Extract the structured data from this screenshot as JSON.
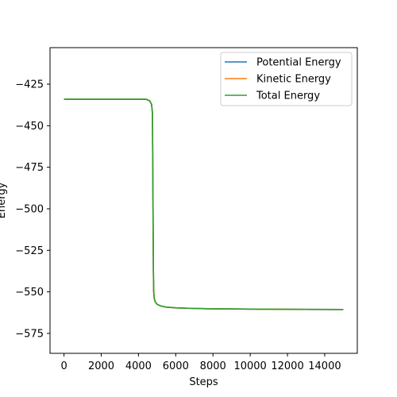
{
  "chart_data": {
    "type": "line",
    "title": "",
    "xlabel": "Steps",
    "ylabel": "Energy",
    "xlim": [
      -750,
      15750
    ],
    "ylim": [
      -587,
      -403
    ],
    "x_ticks": [
      0,
      2000,
      4000,
      6000,
      8000,
      10000,
      12000,
      14000
    ],
    "y_ticks": [
      -425,
      -450,
      -475,
      -500,
      -525,
      -550,
      -575
    ],
    "x_tick_labels": [
      "0",
      "2000",
      "4000",
      "6000",
      "8000",
      "10000",
      "12000",
      "14000"
    ],
    "y_tick_labels": [
      "−425",
      "−450",
      "−475",
      "−500",
      "−525",
      "−550",
      "−575"
    ],
    "grid": false,
    "legend_position": "top-right",
    "series": [
      {
        "name": "Potential Energy",
        "color": "#1f77b4",
        "x": [
          0,
          1000,
          2000,
          3000,
          4000,
          4400,
          4600,
          4700,
          4750,
          4800,
          4820,
          4850,
          4900,
          5000,
          5200,
          5500,
          6000,
          7000,
          8000,
          10000,
          12000,
          15000
        ],
        "y": [
          -434,
          -434,
          -434,
          -434,
          -434,
          -434,
          -435,
          -437,
          -442,
          -538,
          -550,
          -554,
          -556,
          -557.5,
          -558.5,
          -559.2,
          -559.6,
          -560.0,
          -560.2,
          -560.4,
          -560.5,
          -560.6
        ]
      },
      {
        "name": "Kinetic Energy",
        "color": "#ff7f0e",
        "x": [
          0,
          1000,
          2000,
          3000,
          4000,
          4400,
          4600,
          4700,
          4750,
          4800,
          4820,
          4850,
          4900,
          5000,
          5200,
          5500,
          6000,
          7000,
          8000,
          10000,
          12000,
          15000
        ],
        "y": [
          -434,
          -434,
          -434,
          -434,
          -434,
          -434,
          -435,
          -437,
          -442,
          -538,
          -550,
          -554,
          -556,
          -557.5,
          -558.5,
          -559.2,
          -559.6,
          -560.0,
          -560.2,
          -560.4,
          -560.5,
          -560.6
        ]
      },
      {
        "name": "Total Energy",
        "color": "#2ca02c",
        "x": [
          0,
          1000,
          2000,
          3000,
          4000,
          4400,
          4600,
          4700,
          4750,
          4800,
          4820,
          4850,
          4900,
          5000,
          5200,
          5500,
          6000,
          7000,
          8000,
          10000,
          12000,
          15000
        ],
        "y": [
          -434,
          -434,
          -434,
          -434,
          -434,
          -434,
          -435,
          -437,
          -442,
          -538,
          -550,
          -554,
          -556,
          -557.5,
          -558.5,
          -559.2,
          -559.6,
          -560.0,
          -560.2,
          -560.4,
          -560.5,
          -560.6
        ]
      }
    ]
  }
}
